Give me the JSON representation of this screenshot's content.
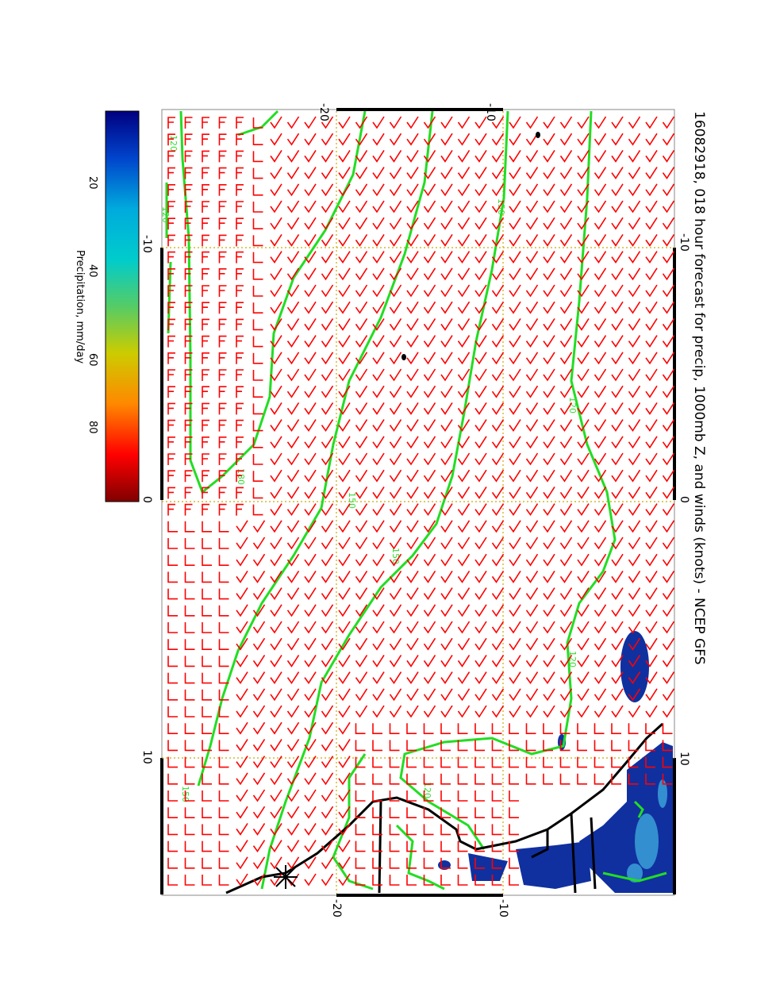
{
  "title": "16082918, 018 hour forecast for precip, 1000mb Z, and winds (knots) - NCEP GFS",
  "map": {
    "lat_ticks_top": [
      "-20",
      "-10"
    ],
    "lat_ticks_bottom": [
      "-20",
      "-10"
    ],
    "lon_ticks_left": [
      "-10",
      "0",
      "10"
    ],
    "lon_ticks_right": [
      "-10",
      "0",
      "10"
    ],
    "contour_labels": [
      "120",
      "150",
      "180",
      "150",
      "150",
      "120",
      "120",
      "120",
      "150",
      "120"
    ],
    "contour_color": "#22dd22",
    "barb_color": "#ff0000",
    "grid_color": "#ccaa00",
    "coast_color": "#000000",
    "precip_color": "#1030a0"
  },
  "colorbar": {
    "title": "Precipitation, mm/day",
    "ticks": [
      "20",
      "40",
      "60",
      "80"
    ],
    "stops": [
      "#000080",
      "#0044cc",
      "#00aadd",
      "#00cccc",
      "#55cc66",
      "#cccc00",
      "#ff8800",
      "#ff0000",
      "#800000"
    ]
  }
}
